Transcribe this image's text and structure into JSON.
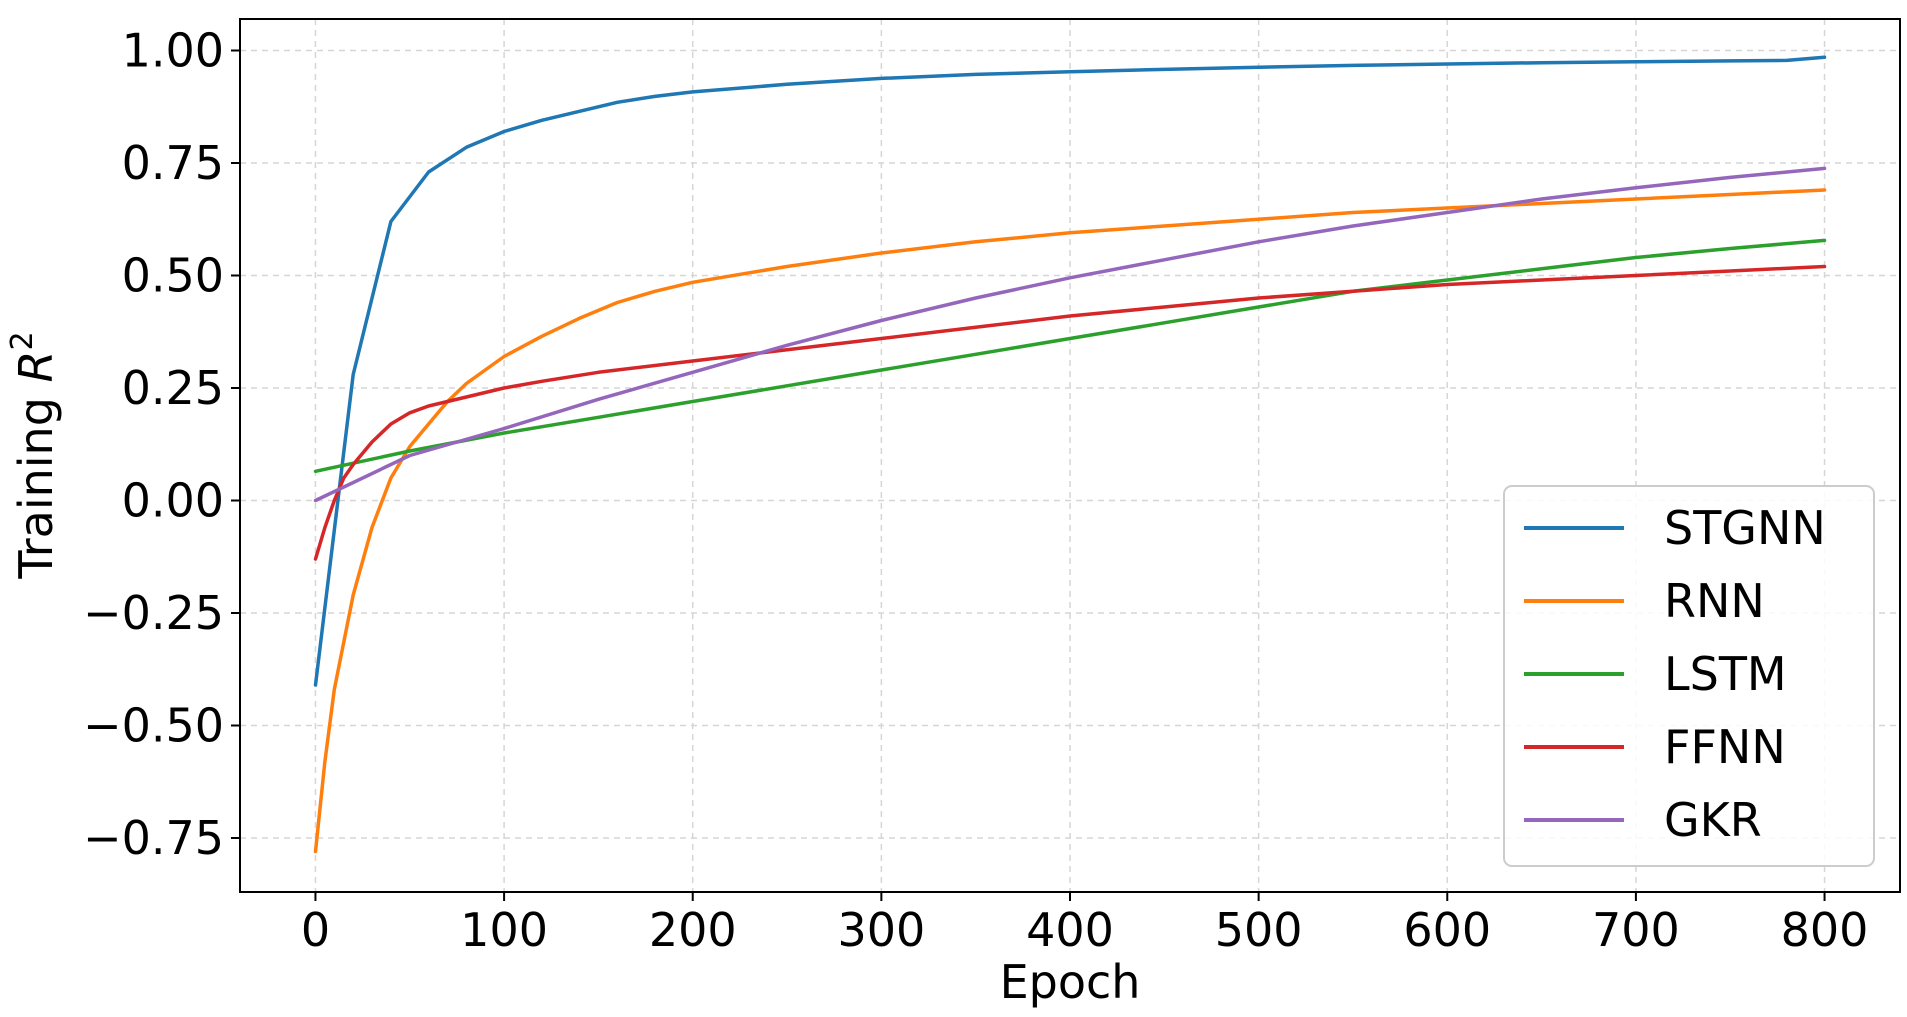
{
  "chart_data": {
    "type": "line",
    "xlabel": "Epoch",
    "ylabel_prefix": "Training ",
    "ylabel_var": "R",
    "ylabel_sup": "2",
    "xlim": [
      -40,
      840
    ],
    "ylim": [
      -0.87,
      1.07
    ],
    "xticks": [
      0,
      100,
      200,
      300,
      400,
      500,
      600,
      700,
      800
    ],
    "xtick_labels": [
      "0",
      "100",
      "200",
      "300",
      "400",
      "500",
      "600",
      "700",
      "800"
    ],
    "yticks": [
      1.0,
      0.75,
      0.5,
      0.25,
      0.0,
      -0.25,
      -0.5,
      -0.75
    ],
    "ytick_labels": [
      "1.00",
      "0.75",
      "0.50",
      "0.25",
      "0.00",
      "−0.25",
      "−0.50",
      "−0.75"
    ],
    "grid": true,
    "legend_position": "lower-right",
    "series": [
      {
        "name": "STGNN",
        "color": "#1f77b4",
        "x": [
          0,
          20,
          40,
          60,
          80,
          100,
          120,
          140,
          160,
          180,
          200,
          250,
          300,
          350,
          400,
          450,
          500,
          550,
          600,
          650,
          700,
          750,
          780,
          800
        ],
        "y": [
          -0.41,
          0.28,
          0.62,
          0.73,
          0.785,
          0.82,
          0.845,
          0.865,
          0.885,
          0.898,
          0.908,
          0.925,
          0.938,
          0.947,
          0.953,
          0.958,
          0.963,
          0.967,
          0.97,
          0.973,
          0.975,
          0.977,
          0.978,
          0.985
        ]
      },
      {
        "name": "RNN",
        "color": "#ff7f0e",
        "x": [
          0,
          5,
          10,
          20,
          30,
          40,
          50,
          60,
          70,
          80,
          90,
          100,
          120,
          140,
          160,
          180,
          200,
          250,
          300,
          350,
          400,
          450,
          500,
          550,
          600,
          650,
          700,
          750,
          800
        ],
        "y": [
          -0.78,
          -0.58,
          -0.42,
          -0.21,
          -0.06,
          0.05,
          0.12,
          0.17,
          0.22,
          0.26,
          0.29,
          0.32,
          0.365,
          0.405,
          0.44,
          0.465,
          0.485,
          0.52,
          0.55,
          0.575,
          0.595,
          0.61,
          0.625,
          0.64,
          0.65,
          0.66,
          0.67,
          0.68,
          0.69
        ]
      },
      {
        "name": "LSTM",
        "color": "#2ca02c",
        "x": [
          0,
          50,
          100,
          150,
          200,
          250,
          300,
          350,
          400,
          450,
          500,
          550,
          600,
          650,
          700,
          750,
          800
        ],
        "y": [
          0.065,
          0.11,
          0.15,
          0.185,
          0.22,
          0.255,
          0.29,
          0.325,
          0.36,
          0.395,
          0.43,
          0.465,
          0.49,
          0.515,
          0.54,
          0.56,
          0.578
        ]
      },
      {
        "name": "FFNN",
        "color": "#d62728",
        "x": [
          0,
          5,
          10,
          15,
          20,
          30,
          40,
          50,
          60,
          80,
          100,
          120,
          150,
          200,
          250,
          300,
          350,
          400,
          450,
          500,
          550,
          600,
          650,
          700,
          750,
          800
        ],
        "y": [
          -0.13,
          -0.06,
          0.0,
          0.05,
          0.08,
          0.13,
          0.17,
          0.195,
          0.21,
          0.23,
          0.25,
          0.265,
          0.285,
          0.31,
          0.335,
          0.36,
          0.385,
          0.41,
          0.43,
          0.45,
          0.465,
          0.48,
          0.49,
          0.5,
          0.51,
          0.52
        ]
      },
      {
        "name": "GKR",
        "color": "#9467bd",
        "x": [
          0,
          50,
          100,
          150,
          200,
          250,
          300,
          350,
          400,
          450,
          500,
          550,
          600,
          650,
          700,
          750,
          800
        ],
        "y": [
          0.0,
          0.1,
          0.16,
          0.225,
          0.285,
          0.345,
          0.4,
          0.45,
          0.495,
          0.535,
          0.575,
          0.61,
          0.64,
          0.67,
          0.695,
          0.718,
          0.738
        ]
      }
    ]
  }
}
